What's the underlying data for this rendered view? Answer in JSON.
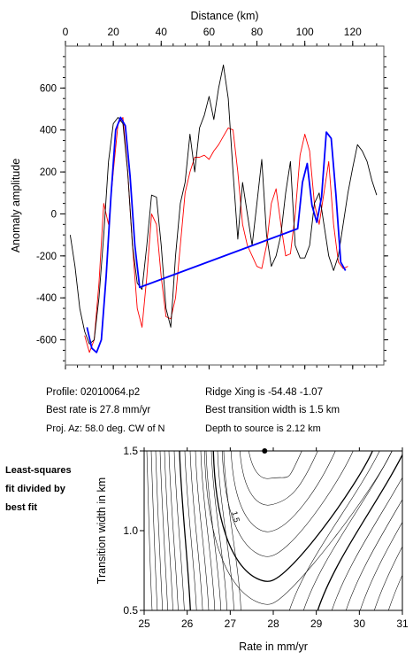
{
  "chart_data": [
    {
      "type": "line",
      "xlabel": "Distance (km)",
      "ylabel": "Anomaly amplitude",
      "xlim": [
        0,
        133
      ],
      "ylim": [
        -720,
        800
      ],
      "xticks": [
        "0",
        "20",
        "40",
        "60",
        "80",
        "100",
        "120"
      ],
      "yticks": [
        "600",
        "400",
        "200",
        "0",
        "-200",
        "-400",
        "-600"
      ],
      "series": [
        {
          "color": "#000000",
          "x": [
            2,
            4,
            6,
            8,
            10,
            12,
            14,
            16,
            18,
            20,
            22,
            24,
            26,
            28,
            30,
            32,
            34,
            36,
            38,
            40,
            42,
            44,
            46,
            48,
            50,
            52,
            54,
            56,
            58,
            60,
            62,
            64,
            66,
            68,
            70,
            72,
            74,
            76,
            78,
            80,
            82,
            84,
            86,
            88,
            90,
            92,
            94,
            96,
            98,
            100,
            102,
            104,
            106,
            108,
            110,
            112,
            114,
            116,
            118,
            120,
            122,
            124,
            126,
            128,
            130
          ],
          "y": [
            -100,
            -250,
            -450,
            -560,
            -620,
            -600,
            -400,
            -100,
            250,
            430,
            460,
            430,
            200,
            -150,
            -330,
            -360,
            -150,
            90,
            80,
            -150,
            -450,
            -540,
            -200,
            50,
            150,
            380,
            200,
            410,
            470,
            560,
            450,
            600,
            710,
            550,
            200,
            -120,
            150,
            0,
            -150,
            50,
            260,
            -100,
            -250,
            -200,
            -100,
            100,
            250,
            -150,
            -210,
            -210,
            -150,
            50,
            100,
            -50,
            -200,
            -270,
            -200,
            -50,
            100,
            220,
            330,
            300,
            250,
            160,
            90
          ]
        },
        {
          "color": "#0000ff",
          "x": [
            9,
            11,
            13,
            15,
            17,
            19,
            21,
            23,
            25,
            27,
            29,
            31,
            97,
            99,
            101,
            103,
            105,
            107,
            109,
            111,
            113,
            115,
            117
          ],
          "y": [
            -540,
            -640,
            -660,
            -600,
            -300,
            80,
            400,
            460,
            420,
            180,
            -150,
            -350,
            -70,
            150,
            240,
            40,
            -40,
            80,
            390,
            360,
            90,
            -230,
            -270
          ]
        },
        {
          "color": "#ff0000",
          "x": [
            8,
            10,
            12,
            14,
            16,
            18,
            20,
            22,
            24,
            26,
            28,
            30,
            32,
            34,
            36,
            38,
            40,
            42,
            44,
            46,
            48,
            50,
            52,
            54,
            56,
            58,
            60,
            62,
            64,
            66,
            68,
            70,
            72,
            74,
            76,
            78,
            80,
            82,
            84,
            86,
            88,
            90,
            92,
            94,
            96,
            98,
            100,
            102,
            104,
            106,
            108,
            110,
            112,
            114,
            116,
            118
          ],
          "y": [
            -580,
            -660,
            -600,
            -330,
            50,
            -50,
            200,
            430,
            460,
            200,
            -150,
            -450,
            -540,
            -300,
            0,
            -50,
            -300,
            -490,
            -500,
            -400,
            -150,
            100,
            200,
            270,
            270,
            280,
            260,
            300,
            330,
            370,
            410,
            400,
            200,
            -50,
            -150,
            -200,
            -250,
            -260,
            -150,
            50,
            120,
            -50,
            -200,
            -190,
            0,
            280,
            380,
            300,
            50,
            -50,
            100,
            250,
            -50,
            -230,
            -260,
            -250
          ]
        }
      ]
    },
    {
      "type": "contour",
      "xlabel": "Rate in mm/yr",
      "ylabel": "Transition width in km",
      "xlim": [
        25,
        31
      ],
      "ylim": [
        0.5,
        1.5
      ],
      "xticks": [
        "25",
        "26",
        "27",
        "28",
        "29",
        "30",
        "31"
      ],
      "yticks": [
        "1.5",
        "1.0",
        "0.5"
      ],
      "contour_label": "1.5",
      "best_fit_point": [
        27.8,
        1.5
      ]
    }
  ],
  "info": {
    "profile": "Profile: 02010064.p2",
    "ridge": "Ridge Xing is -54.48 -1.07",
    "best_rate": "Best rate is 27.8 mm/yr",
    "best_width": "Best transition width is 1.5 km",
    "proj": "Proj. Az: 58.0 deg. CW of N",
    "depth": "Depth to source is   2.12 km"
  },
  "side_note": {
    "line1": "Least-squares",
    "line2": "fit divided by",
    "line3": "best fit"
  }
}
